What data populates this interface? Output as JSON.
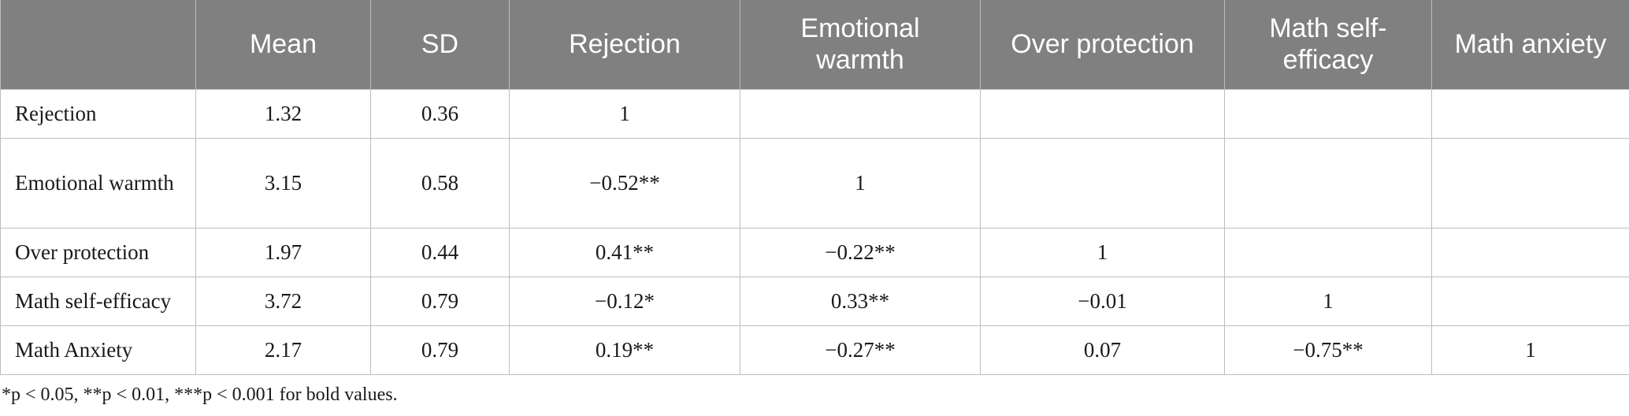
{
  "table": {
    "header": [
      "Mean",
      "SD",
      "Rejection",
      "Emotional warmth",
      "Over protection",
      "Math self-efficacy",
      "Math anxiety"
    ],
    "rows": [
      {
        "label": "Rejection",
        "cells": [
          "1.32",
          "0.36",
          "1"
        ]
      },
      {
        "label": "Emotional warmth",
        "cells": [
          "3.15",
          "0.58",
          "−0.52**",
          "1"
        ]
      },
      {
        "label": "Over protection",
        "cells": [
          "1.97",
          "0.44",
          "0.41**",
          "−0.22**",
          "1"
        ]
      },
      {
        "label": "Math self-efficacy",
        "cells": [
          "3.72",
          "0.79",
          "−0.12*",
          "0.33**",
          "−0.01",
          "1"
        ]
      },
      {
        "label": "Math Anxiety",
        "cells": [
          "2.17",
          "0.79",
          "0.19**",
          "−0.27**",
          "0.07",
          "−0.75**",
          "1"
        ]
      }
    ],
    "footnote": "*p < 0.05, **p < 0.01, ***p < 0.001 for bold values."
  }
}
